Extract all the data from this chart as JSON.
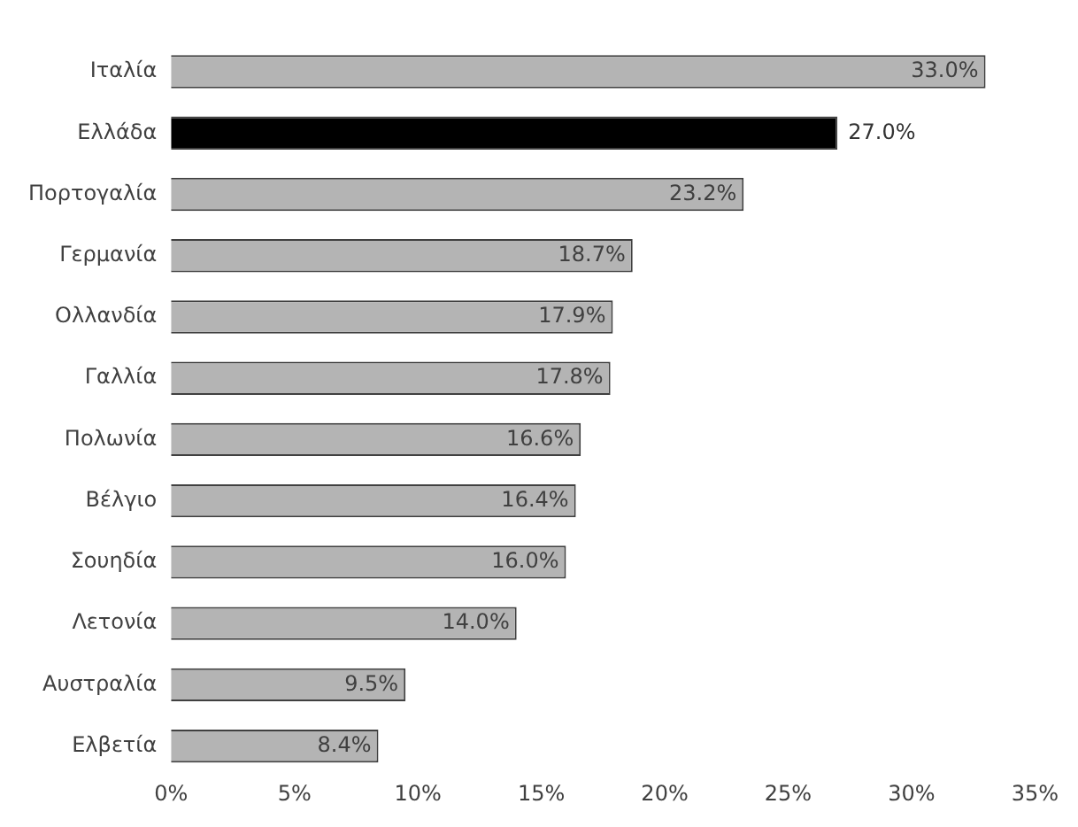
{
  "chart_data": {
    "type": "bar",
    "orientation": "horizontal",
    "categories": [
      "Ιταλία",
      "Ελλάδα",
      "Πορτογαλία",
      "Γερμανία",
      "Ολλανδία",
      "Γαλλία",
      "Πολωνία",
      "Βέλγιο",
      "Σουηδία",
      "Λετονία",
      "Αυστραλία",
      "Ελβετία"
    ],
    "values": [
      33.0,
      27.0,
      23.2,
      18.7,
      17.9,
      17.8,
      16.6,
      16.4,
      16.0,
      14.0,
      9.5,
      8.4
    ],
    "colors": [
      "#b4b4b4",
      "#000000",
      "#b4b4b4",
      "#b4b4b4",
      "#b4b4b4",
      "#b4b4b4",
      "#b4b4b4",
      "#b4b4b4",
      "#b4b4b4",
      "#b4b4b4",
      "#b4b4b4",
      "#b4b4b4"
    ],
    "value_labels": [
      "33.0%",
      "27.0%",
      "23.2%",
      "18.7%",
      "17.9%",
      "17.8%",
      "16.6%",
      "16.4%",
      "16.0%",
      "14.0%",
      "9.5%",
      "8.4%"
    ],
    "xlim": [
      0,
      35
    ],
    "xticks": [
      {
        "value": 0,
        "label": "0%"
      },
      {
        "value": 5,
        "label": "5%"
      },
      {
        "value": 10,
        "label": "10%"
      },
      {
        "value": 15,
        "label": "15%"
      },
      {
        "value": 20,
        "label": "20%"
      },
      {
        "value": 25,
        "label": "25%"
      },
      {
        "value": 30,
        "label": "30%"
      },
      {
        "value": 35,
        "label": "35%"
      }
    ],
    "grid": false,
    "legend": false
  }
}
